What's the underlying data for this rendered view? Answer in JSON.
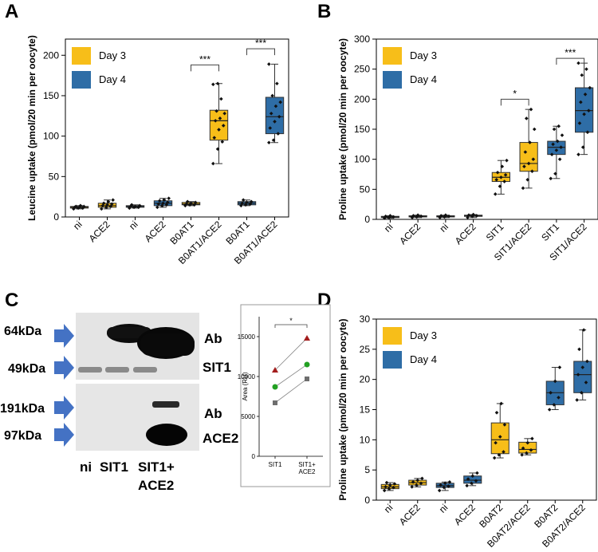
{
  "panels": {
    "A": "A",
    "B": "B",
    "C": "C",
    "D": "D"
  },
  "colors": {
    "day3": "#F7BE19",
    "day4": "#2E6DA6",
    "box_edge": "#333333",
    "blot_bg": "#e4e4e4",
    "arrow": "#4472C4",
    "quant_red": "#A31D1D",
    "quant_green": "#22A022",
    "quant_gray": "#6E6E6E"
  },
  "chart_data": [
    {
      "id": "A",
      "type": "box",
      "ylabel": "Leucine uptake (pmol/20 min per oocyte)",
      "ylim": [
        0,
        220
      ],
      "yticks": [
        0,
        50,
        100,
        150,
        200
      ],
      "legend": {
        "placement": "top-left",
        "items": [
          {
            "name": "Day 3",
            "color": "#F7BE19"
          },
          {
            "name": "Day 4",
            "color": "#2E6DA6"
          }
        ]
      },
      "categories": [
        "ni",
        "ACE2",
        "ni",
        "ACE2",
        "B0AT1",
        "B0AT1/ACE2",
        "B0AT1",
        "B0AT1/ACE2"
      ],
      "boxes": [
        {
          "group": "Day 3",
          "min": 10,
          "q1": 11,
          "median": 12,
          "q3": 13,
          "max": 14,
          "points": [
            10,
            11,
            11,
            12,
            12,
            13,
            13,
            14
          ]
        },
        {
          "group": "Day 3",
          "min": 10,
          "q1": 12,
          "median": 14,
          "q3": 17,
          "max": 21,
          "points": [
            10,
            12,
            13,
            14,
            15,
            16,
            17,
            19,
            21
          ]
        },
        {
          "group": "Day 4",
          "min": 11,
          "q1": 12,
          "median": 13,
          "q3": 14,
          "max": 15,
          "points": [
            11,
            12,
            12,
            13,
            13,
            14,
            15
          ]
        },
        {
          "group": "Day 4",
          "min": 12,
          "q1": 14,
          "median": 17,
          "q3": 20,
          "max": 23,
          "points": [
            12,
            14,
            15,
            16,
            17,
            18,
            20,
            21,
            23
          ]
        },
        {
          "group": "Day 3",
          "min": 14,
          "q1": 15,
          "median": 16,
          "q3": 18,
          "max": 19,
          "points": [
            14,
            15,
            15,
            16,
            17,
            18,
            19
          ]
        },
        {
          "group": "Day 3",
          "min": 66,
          "q1": 95,
          "median": 119,
          "q3": 132,
          "max": 165,
          "points": [
            66,
            84,
            93,
            98,
            108,
            113,
            119,
            122,
            128,
            131,
            146,
            164,
            165
          ]
        },
        {
          "group": "Day 4",
          "min": 14,
          "q1": 15,
          "median": 17,
          "q3": 19,
          "max": 21,
          "points": [
            14,
            15,
            16,
            17,
            18,
            19,
            21
          ]
        },
        {
          "group": "Day 4",
          "min": 92,
          "q1": 103,
          "median": 124,
          "q3": 148,
          "max": 189,
          "points": [
            92,
            95,
            103,
            110,
            118,
            124,
            128,
            137,
            142,
            150,
            165,
            189
          ]
        }
      ],
      "brackets": [
        {
          "from": 4,
          "to": 5,
          "y": 188,
          "label": "***"
        },
        {
          "from": 6,
          "to": 7,
          "y": 208,
          "label": "***"
        }
      ]
    },
    {
      "id": "B",
      "type": "box",
      "ylabel": "Proline uptake (pmol/20 min per oocyte)",
      "ylim": [
        0,
        300
      ],
      "yticks": [
        0,
        50,
        100,
        150,
        200,
        250,
        300
      ],
      "legend": {
        "placement": "top-left",
        "items": [
          {
            "name": "Day 3",
            "color": "#F7BE19"
          },
          {
            "name": "Day 4",
            "color": "#2E6DA6"
          }
        ]
      },
      "categories": [
        "ni",
        "ACE2",
        "ni",
        "ACE2",
        "SIT1",
        "SIT1/ACE2",
        "SIT1",
        "SIT1/ACE2"
      ],
      "boxes": [
        {
          "group": "Day 3",
          "min": 2,
          "q1": 3,
          "median": 4,
          "q3": 5,
          "max": 6,
          "points": [
            2,
            3,
            4,
            5,
            6
          ]
        },
        {
          "group": "Day 3",
          "min": 3,
          "q1": 4,
          "median": 5,
          "q3": 6,
          "max": 7,
          "points": [
            3,
            4,
            5,
            6,
            7
          ]
        },
        {
          "group": "Day 4",
          "min": 3,
          "q1": 4,
          "median": 5,
          "q3": 6,
          "max": 7,
          "points": [
            3,
            4,
            5,
            6,
            7
          ]
        },
        {
          "group": "Day 4",
          "min": 3,
          "q1": 5,
          "median": 6,
          "q3": 7,
          "max": 8,
          "points": [
            3,
            5,
            6,
            7,
            8
          ]
        },
        {
          "group": "Day 3",
          "min": 42,
          "q1": 63,
          "median": 70,
          "q3": 78,
          "max": 98,
          "points": [
            42,
            55,
            63,
            66,
            70,
            74,
            78,
            88,
            98
          ]
        },
        {
          "group": "Day 3",
          "min": 52,
          "q1": 80,
          "median": 93,
          "q3": 128,
          "max": 183,
          "points": [
            52,
            66,
            80,
            88,
            93,
            100,
            112,
            128,
            150,
            168,
            183
          ]
        },
        {
          "group": "Day 4",
          "min": 68,
          "q1": 108,
          "median": 120,
          "q3": 130,
          "max": 155,
          "points": [
            68,
            76,
            100,
            108,
            115,
            120,
            125,
            130,
            140,
            150,
            155
          ]
        },
        {
          "group": "Day 4",
          "min": 108,
          "q1": 145,
          "median": 181,
          "q3": 219,
          "max": 260,
          "points": [
            108,
            120,
            145,
            160,
            175,
            181,
            195,
            208,
            219,
            240,
            250,
            260
          ]
        }
      ],
      "brackets": [
        {
          "from": 4,
          "to": 5,
          "y": 200,
          "label": "*"
        },
        {
          "from": 6,
          "to": 7,
          "y": 268,
          "label": "***"
        }
      ]
    },
    {
      "id": "D",
      "type": "box",
      "ylabel": "Proline uptake (pmol/20 min per oocyte)",
      "ylim": [
        0,
        30
      ],
      "yticks": [
        0,
        5,
        10,
        15,
        20,
        25,
        30
      ],
      "legend": {
        "placement": "top-left",
        "items": [
          {
            "name": "Day 3",
            "color": "#F7BE19"
          },
          {
            "name": "Day 4",
            "color": "#2E6DA6"
          }
        ]
      },
      "categories": [
        "ni",
        "ACE2",
        "ni",
        "ACE2",
        "B0AT2",
        "B0AT2/ACE2",
        "B0AT2",
        "B0AT2/ACE2"
      ],
      "boxes": [
        {
          "group": "Day 3",
          "min": 1.6,
          "q1": 1.9,
          "median": 2.2,
          "q3": 2.6,
          "max": 2.9,
          "points": [
            1.6,
            1.9,
            2.1,
            2.2,
            2.5,
            2.7,
            2.9
          ]
        },
        {
          "group": "Day 3",
          "min": 2.2,
          "q1": 2.5,
          "median": 2.9,
          "q3": 3.3,
          "max": 3.6,
          "points": [
            2.2,
            2.5,
            2.8,
            3.0,
            3.3,
            3.6
          ]
        },
        {
          "group": "Day 4",
          "min": 1.6,
          "q1": 2.1,
          "median": 2.4,
          "q3": 2.8,
          "max": 3.0,
          "points": [
            1.6,
            2.1,
            2.3,
            2.5,
            2.8,
            3.0
          ]
        },
        {
          "group": "Day 4",
          "min": 2.4,
          "q1": 2.8,
          "median": 3.3,
          "q3": 4.0,
          "max": 4.5,
          "points": [
            2.4,
            2.8,
            3.2,
            3.5,
            4.0,
            4.5
          ]
        },
        {
          "group": "Day 3",
          "min": 7.0,
          "q1": 7.7,
          "median": 10.0,
          "q3": 12.8,
          "max": 16.0,
          "points": [
            7.0,
            7.5,
            8.0,
            9.5,
            10.5,
            12.5,
            14.5,
            16.0
          ]
        },
        {
          "group": "Day 3",
          "min": 7.5,
          "q1": 7.8,
          "median": 8.4,
          "q3": 9.6,
          "max": 10.2,
          "points": [
            7.5,
            7.8,
            8.3,
            8.6,
            9.5,
            10.2
          ]
        },
        {
          "group": "Day 4",
          "min": 15.0,
          "q1": 15.8,
          "median": 17.8,
          "q3": 19.7,
          "max": 22.0,
          "points": [
            15.0,
            15.8,
            17.0,
            17.8,
            19.7,
            22.0
          ]
        },
        {
          "group": "Day 4",
          "min": 16.6,
          "q1": 17.8,
          "median": 20.8,
          "q3": 23.0,
          "max": 28.2,
          "points": [
            16.6,
            17.8,
            19.5,
            20.8,
            22.0,
            23.0,
            25.0,
            28.2
          ]
        }
      ],
      "brackets": []
    },
    {
      "id": "C-quant",
      "type": "scatter",
      "ylabel": "Area (RU)",
      "ylim": [
        0,
        17500
      ],
      "yticks": [
        0,
        5000,
        10000,
        15000
      ],
      "categories": [
        "SIT1",
        "SIT1+ ACE2"
      ],
      "series": [
        {
          "color": "#A31D1D",
          "marker": "triangle",
          "values": [
            10800,
            14800
          ]
        },
        {
          "color": "#22A022",
          "marker": "circle",
          "values": [
            8700,
            11500
          ]
        },
        {
          "color": "#6E6E6E",
          "marker": "square",
          "values": [
            6700,
            9700
          ]
        }
      ],
      "brackets": [
        {
          "from": 0,
          "to": 1,
          "y": 16500,
          "label": "*"
        }
      ]
    }
  ],
  "blot": {
    "top_markers": [
      "64kDa",
      "49kDa"
    ],
    "bottom_markers": [
      "191kDa",
      "97kDa"
    ],
    "top_antibody": [
      "Ab",
      "SIT1"
    ],
    "bottom_antibody": [
      "Ab",
      "ACE2"
    ],
    "lanes": [
      "ni",
      "SIT1",
      "SIT1+",
      "ACE2"
    ]
  }
}
